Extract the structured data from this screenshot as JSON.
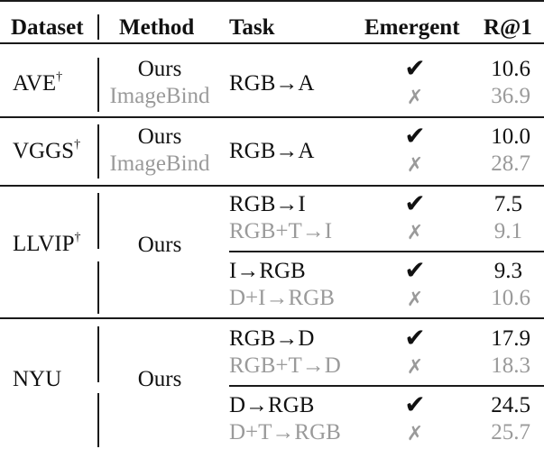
{
  "headers": {
    "dataset": "Dataset",
    "method": "Method",
    "task": "Task",
    "emergent": "Emergent",
    "recall": "R@1"
  },
  "marks": {
    "yes": "✔",
    "no": "✗",
    "dagger": "†"
  },
  "groups": [
    {
      "dataset": "AVE",
      "dagger": true,
      "method_primary": "Ours",
      "method_secondary": "ImageBind",
      "rows": [
        {
          "task": "RGB→A",
          "emergent": true,
          "r1": "10.6"
        },
        {
          "task": "",
          "emergent": false,
          "r1": "36.9"
        }
      ]
    },
    {
      "dataset": "VGGS",
      "dagger": true,
      "method_primary": "Ours",
      "method_secondary": "ImageBind",
      "rows": [
        {
          "task": "RGB→A",
          "emergent": true,
          "r1": "10.0"
        },
        {
          "task": "",
          "emergent": false,
          "r1": "28.7"
        }
      ]
    },
    {
      "dataset": "LLVIP",
      "dagger": true,
      "method_primary": "Ours",
      "rows": [
        {
          "task": "RGB→I",
          "emergent": true,
          "r1": "7.5"
        },
        {
          "task": "RGB+T→I",
          "emergent": false,
          "r1": "9.1"
        },
        {
          "task": "I→RGB",
          "emergent": true,
          "r1": "9.3"
        },
        {
          "task": "D+I→RGB",
          "emergent": false,
          "r1": "10.6"
        }
      ]
    },
    {
      "dataset": "NYU",
      "dagger": false,
      "method_primary": "Ours",
      "rows": [
        {
          "task": "RGB→D",
          "emergent": true,
          "r1": "17.9"
        },
        {
          "task": "RGB+T→D",
          "emergent": false,
          "r1": "18.3"
        },
        {
          "task": "D→RGB",
          "emergent": true,
          "r1": "24.5"
        },
        {
          "task": "D+T→RGB",
          "emergent": false,
          "r1": "25.7"
        }
      ]
    }
  ]
}
